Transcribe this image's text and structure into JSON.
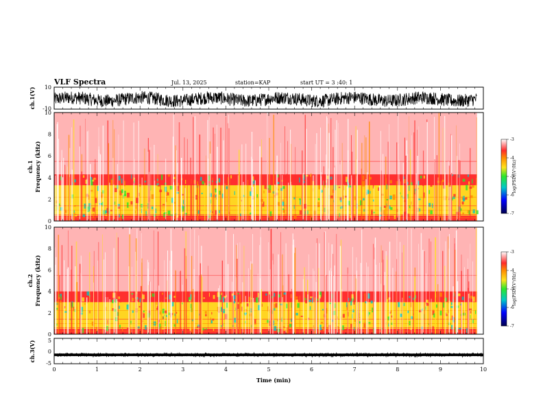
{
  "header": {
    "title": "VLF Spectra",
    "date": "Jul. 13, 2025",
    "station": "station=KAP",
    "start": "start UT = 3 :40: 1"
  },
  "colors": {
    "white": "#ffffff",
    "red": "#ff2a2a",
    "orange": "#ff8c00",
    "yellow": "#ffe21c",
    "green": "#2be62b",
    "cyan": "#00c8c8",
    "blue": "#0000ff",
    "navy": "#000050",
    "trace": "#000000"
  },
  "chart_data": [
    {
      "type": "line",
      "panel": "ch1-waveform",
      "ylabel": "ch.1(V)",
      "xlim": [
        0,
        9.85
      ],
      "ylim": [
        -10,
        10
      ],
      "ytick_labels": [
        "10",
        "-10"
      ],
      "amplitude_range": [
        -8,
        8
      ],
      "note": "noisy broadband waveform, roughly centered at -1 V"
    },
    {
      "type": "heatmap",
      "panel": "ch1-spectrogram",
      "ylabel": "ch.1",
      "ylabel2": "Frequency (kHz)",
      "xlim": [
        0,
        9.85
      ],
      "ylim": [
        0,
        10
      ],
      "ytick_labels": [
        "0",
        "2",
        "4",
        "6",
        "8",
        "10"
      ],
      "colorbar": {
        "label": "log(PSD)(V²/Hz)",
        "range": [
          -7,
          -3
        ],
        "tick_labels": [
          "-3",
          "-4",
          "-5",
          "-6",
          "-7"
        ]
      },
      "bands": [
        {
          "from_khz": 0,
          "to_khz": 0.5,
          "log_psd": -4.2
        },
        {
          "from_khz": 0.5,
          "to_khz": 3.3,
          "log_psd": -4.8
        },
        {
          "from_khz": 3.3,
          "to_khz": 4.3,
          "log_psd": -4.0
        },
        {
          "from_khz": 4.3,
          "to_khz": 10,
          "log_psd": -3.3
        }
      ]
    },
    {
      "type": "heatmap",
      "panel": "ch2-spectrogram",
      "ylabel": "ch.2",
      "ylabel2": "Frequency (kHz)",
      "xlim": [
        0,
        9.85
      ],
      "ylim": [
        0,
        10
      ],
      "ytick_labels": [
        "0",
        "2",
        "4",
        "6",
        "8",
        "10"
      ],
      "colorbar": {
        "label": "log(PSD)(V²/Hz)",
        "range": [
          -7,
          -3
        ],
        "tick_labels": [
          "-3",
          "-4",
          "-5",
          "-6",
          "-7"
        ]
      },
      "bands": [
        {
          "from_khz": 0,
          "to_khz": 0.5,
          "log_psd": -4.2
        },
        {
          "from_khz": 0.5,
          "to_khz": 3.0,
          "log_psd": -5.0
        },
        {
          "from_khz": 3.0,
          "to_khz": 4.0,
          "log_psd": -4.0
        },
        {
          "from_khz": 4.0,
          "to_khz": 10,
          "log_psd": -3.3
        }
      ]
    },
    {
      "type": "line",
      "panel": "ch3-waveform",
      "ylabel": "ch.3(V)",
      "xlabel": "Time (min)",
      "xlim": [
        0,
        10
      ],
      "ylim": [
        -5,
        5
      ],
      "ytick_labels": [
        "5",
        "0",
        "-5"
      ],
      "level": -1.5,
      "amplitude_range": [
        -2.0,
        -1.0
      ],
      "xtick_labels": [
        "0",
        "1",
        "2",
        "3",
        "4",
        "5",
        "6",
        "7",
        "8",
        "9",
        "10"
      ]
    }
  ]
}
